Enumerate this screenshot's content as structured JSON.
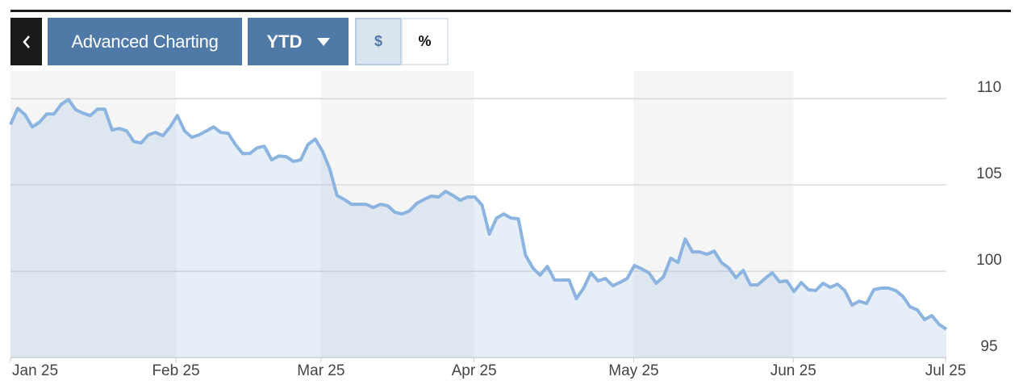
{
  "toolbar": {
    "title": "Advanced Charting",
    "range": "YTD",
    "mode_dollar": "$",
    "mode_percent": "%"
  },
  "chart_data": {
    "type": "area",
    "values": [
      108.5,
      109.44,
      109.07,
      108.36,
      108.64,
      109.11,
      109.11,
      109.67,
      109.95,
      109.35,
      109.16,
      109.02,
      109.39,
      109.39,
      108.18,
      108.27,
      108.13,
      107.52,
      107.43,
      107.9,
      108.04,
      107.85,
      108.36,
      109.02,
      108.13,
      107.76,
      107.9,
      108.13,
      108.36,
      108.04,
      107.99,
      107.34,
      106.82,
      106.82,
      107.15,
      107.24,
      106.45,
      106.68,
      106.64,
      106.36,
      106.45,
      107.34,
      107.66,
      106.96,
      105.93,
      104.39,
      104.16,
      103.88,
      103.88,
      103.88,
      103.69,
      103.88,
      103.79,
      103.41,
      103.32,
      103.5,
      103.93,
      104.16,
      104.35,
      104.3,
      104.63,
      104.39,
      104.11,
      104.3,
      104.3,
      103.83,
      102.15,
      103.08,
      103.32,
      103.08,
      103.04,
      100.93,
      100.19,
      99.77,
      100.28,
      99.49,
      99.49,
      99.49,
      98.41,
      99.02,
      99.91,
      99.44,
      99.58,
      99.16,
      99.35,
      99.58,
      100.33,
      100.14,
      99.91,
      99.3,
      99.67,
      100.75,
      100.51,
      101.87,
      101.12,
      101.12,
      100.98,
      101.17,
      100.51,
      100.19,
      99.63,
      100.05,
      99.21,
      99.21,
      99.58,
      99.91,
      99.39,
      99.44,
      98.83,
      99.35,
      98.93,
      98.88,
      99.3,
      99.07,
      99.25,
      98.88,
      98.04,
      98.27,
      98.13,
      98.93,
      99.02,
      99.02,
      98.88,
      98.55,
      97.94,
      97.76,
      97.2,
      97.43,
      96.92,
      96.64
    ],
    "color": "#8cb4e0",
    "xlim": [
      0,
      129
    ],
    "xticks": [
      {
        "value": 0,
        "label": "Jan 25"
      },
      {
        "value": 22.8,
        "label": "Feb 25"
      },
      {
        "value": 42.8,
        "label": "Mar 25"
      },
      {
        "value": 63.9,
        "label": "Apr 25"
      },
      {
        "value": 85.9,
        "label": "May 25"
      },
      {
        "value": 107.9,
        "label": "Jun 25"
      },
      {
        "value": 128.9,
        "label": "Jul 25"
      }
    ],
    "ylim": [
      95,
      111.6
    ],
    "yticks": [
      95,
      100,
      105,
      110
    ],
    "grid": true
  }
}
